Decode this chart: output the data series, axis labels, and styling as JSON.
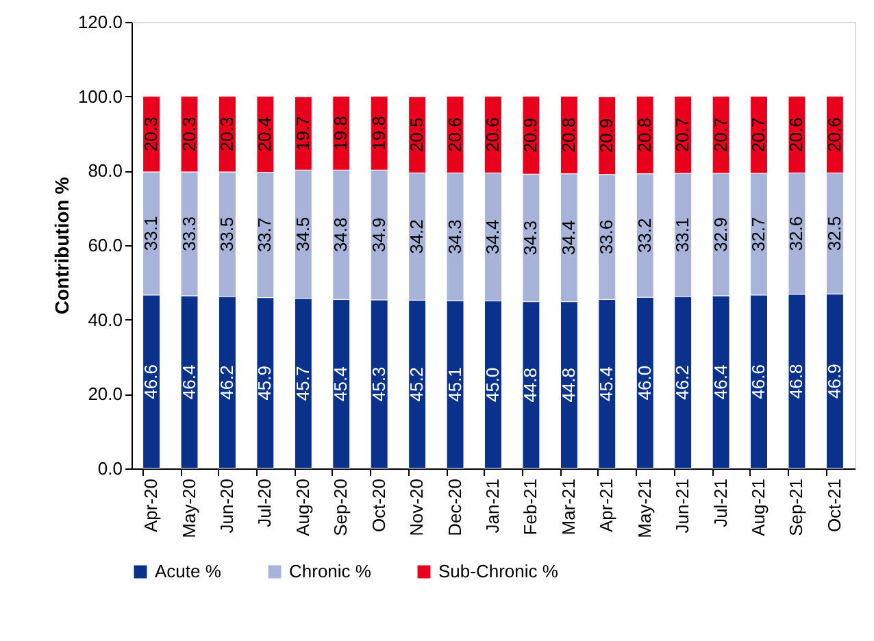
{
  "chart_data": {
    "type": "bar",
    "stacked": true,
    "ylabel": "Contribution %",
    "categories": [
      "Apr-20",
      "May-20",
      "Jun-20",
      "Jul-20",
      "Aug-20",
      "Sep-20",
      "Oct-20",
      "Nov-20",
      "Dec-20",
      "Jan-21",
      "Feb-21",
      "Mar-21",
      "Apr-21",
      "May-21",
      "Jun-21",
      "Jul-21",
      "Aug-21",
      "Sep-21",
      "Oct-21"
    ],
    "series": [
      {
        "name": "Acute %",
        "color": "#0a318c",
        "values": [
          46.6,
          46.4,
          46.2,
          45.9,
          45.7,
          45.4,
          45.3,
          45.2,
          45.1,
          45.0,
          44.8,
          44.8,
          45.4,
          46.0,
          46.2,
          46.4,
          46.6,
          46.8,
          46.9
        ],
        "value_labels": [
          "46.6",
          "46.4",
          "46.2",
          "45.9",
          "45.7",
          "45.4",
          "45.3",
          "45.2",
          "45.1",
          "45.0",
          "44.8",
          "44.8",
          "45.4",
          "46.0",
          "46.2",
          "46.4",
          "46.6",
          "46.8",
          "46.9"
        ]
      },
      {
        "name": "Chronic %",
        "color": "#a7b3d9",
        "values": [
          33.1,
          33.3,
          33.5,
          33.7,
          34.5,
          34.8,
          34.9,
          34.2,
          34.3,
          34.4,
          34.3,
          34.4,
          33.6,
          33.2,
          33.1,
          32.9,
          32.7,
          32.6,
          32.5
        ],
        "value_labels": [
          "33.1",
          "33.3",
          "33.5",
          "33.7",
          "34.5",
          "34.8",
          "34.9",
          "34.2",
          "34.3",
          "34.4",
          "34.3",
          "34.4",
          "33.6",
          "33.2",
          "33.1",
          "32.9",
          "32.7",
          "32.6",
          "32.5"
        ]
      },
      {
        "name": "Sub-Chronic %",
        "color": "#e8001c",
        "values": [
          20.3,
          20.3,
          20.3,
          20.4,
          19.7,
          19.8,
          19.8,
          20.5,
          20.6,
          20.6,
          20.9,
          20.8,
          20.9,
          20.8,
          20.7,
          20.7,
          20.7,
          20.6,
          20.6
        ],
        "value_labels": [
          "20.3",
          "20.3",
          "20.3",
          "20.4",
          "19.7",
          "19.8",
          "19.8",
          "20.5",
          "20.6",
          "20.6",
          "20.9",
          "20.8",
          "20.9",
          "20.8",
          "20.7",
          "20.7",
          "20.7",
          "20.6",
          "20.6"
        ]
      }
    ],
    "ylim": [
      0,
      120
    ],
    "yticks": [
      {
        "value": 0,
        "label": "0.0"
      },
      {
        "value": 20,
        "label": "20.0"
      },
      {
        "value": 40,
        "label": "40.0"
      },
      {
        "value": 60,
        "label": "60.0"
      },
      {
        "value": 80,
        "label": "80.0"
      },
      {
        "value": 100,
        "label": "100.0"
      },
      {
        "value": 120,
        "label": "120.0"
      }
    ],
    "grid": false,
    "legend": "bottom"
  }
}
